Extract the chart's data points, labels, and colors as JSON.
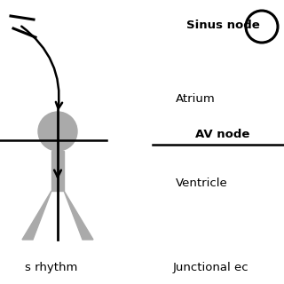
{
  "bg_color": "#ffffff",
  "black_color": "#000000",
  "gray_color": "#aaaaaa",
  "left_label_bottom": "s rhythm",
  "right_label_bottom": "Junctional ec",
  "sinus_node_text": "Sinus node",
  "atrium_text": "Atrium",
  "av_node_text": "AV node",
  "ventricle_text": "Ventricle",
  "fig_w": 3.2,
  "fig_h": 3.2,
  "dpi": 100
}
